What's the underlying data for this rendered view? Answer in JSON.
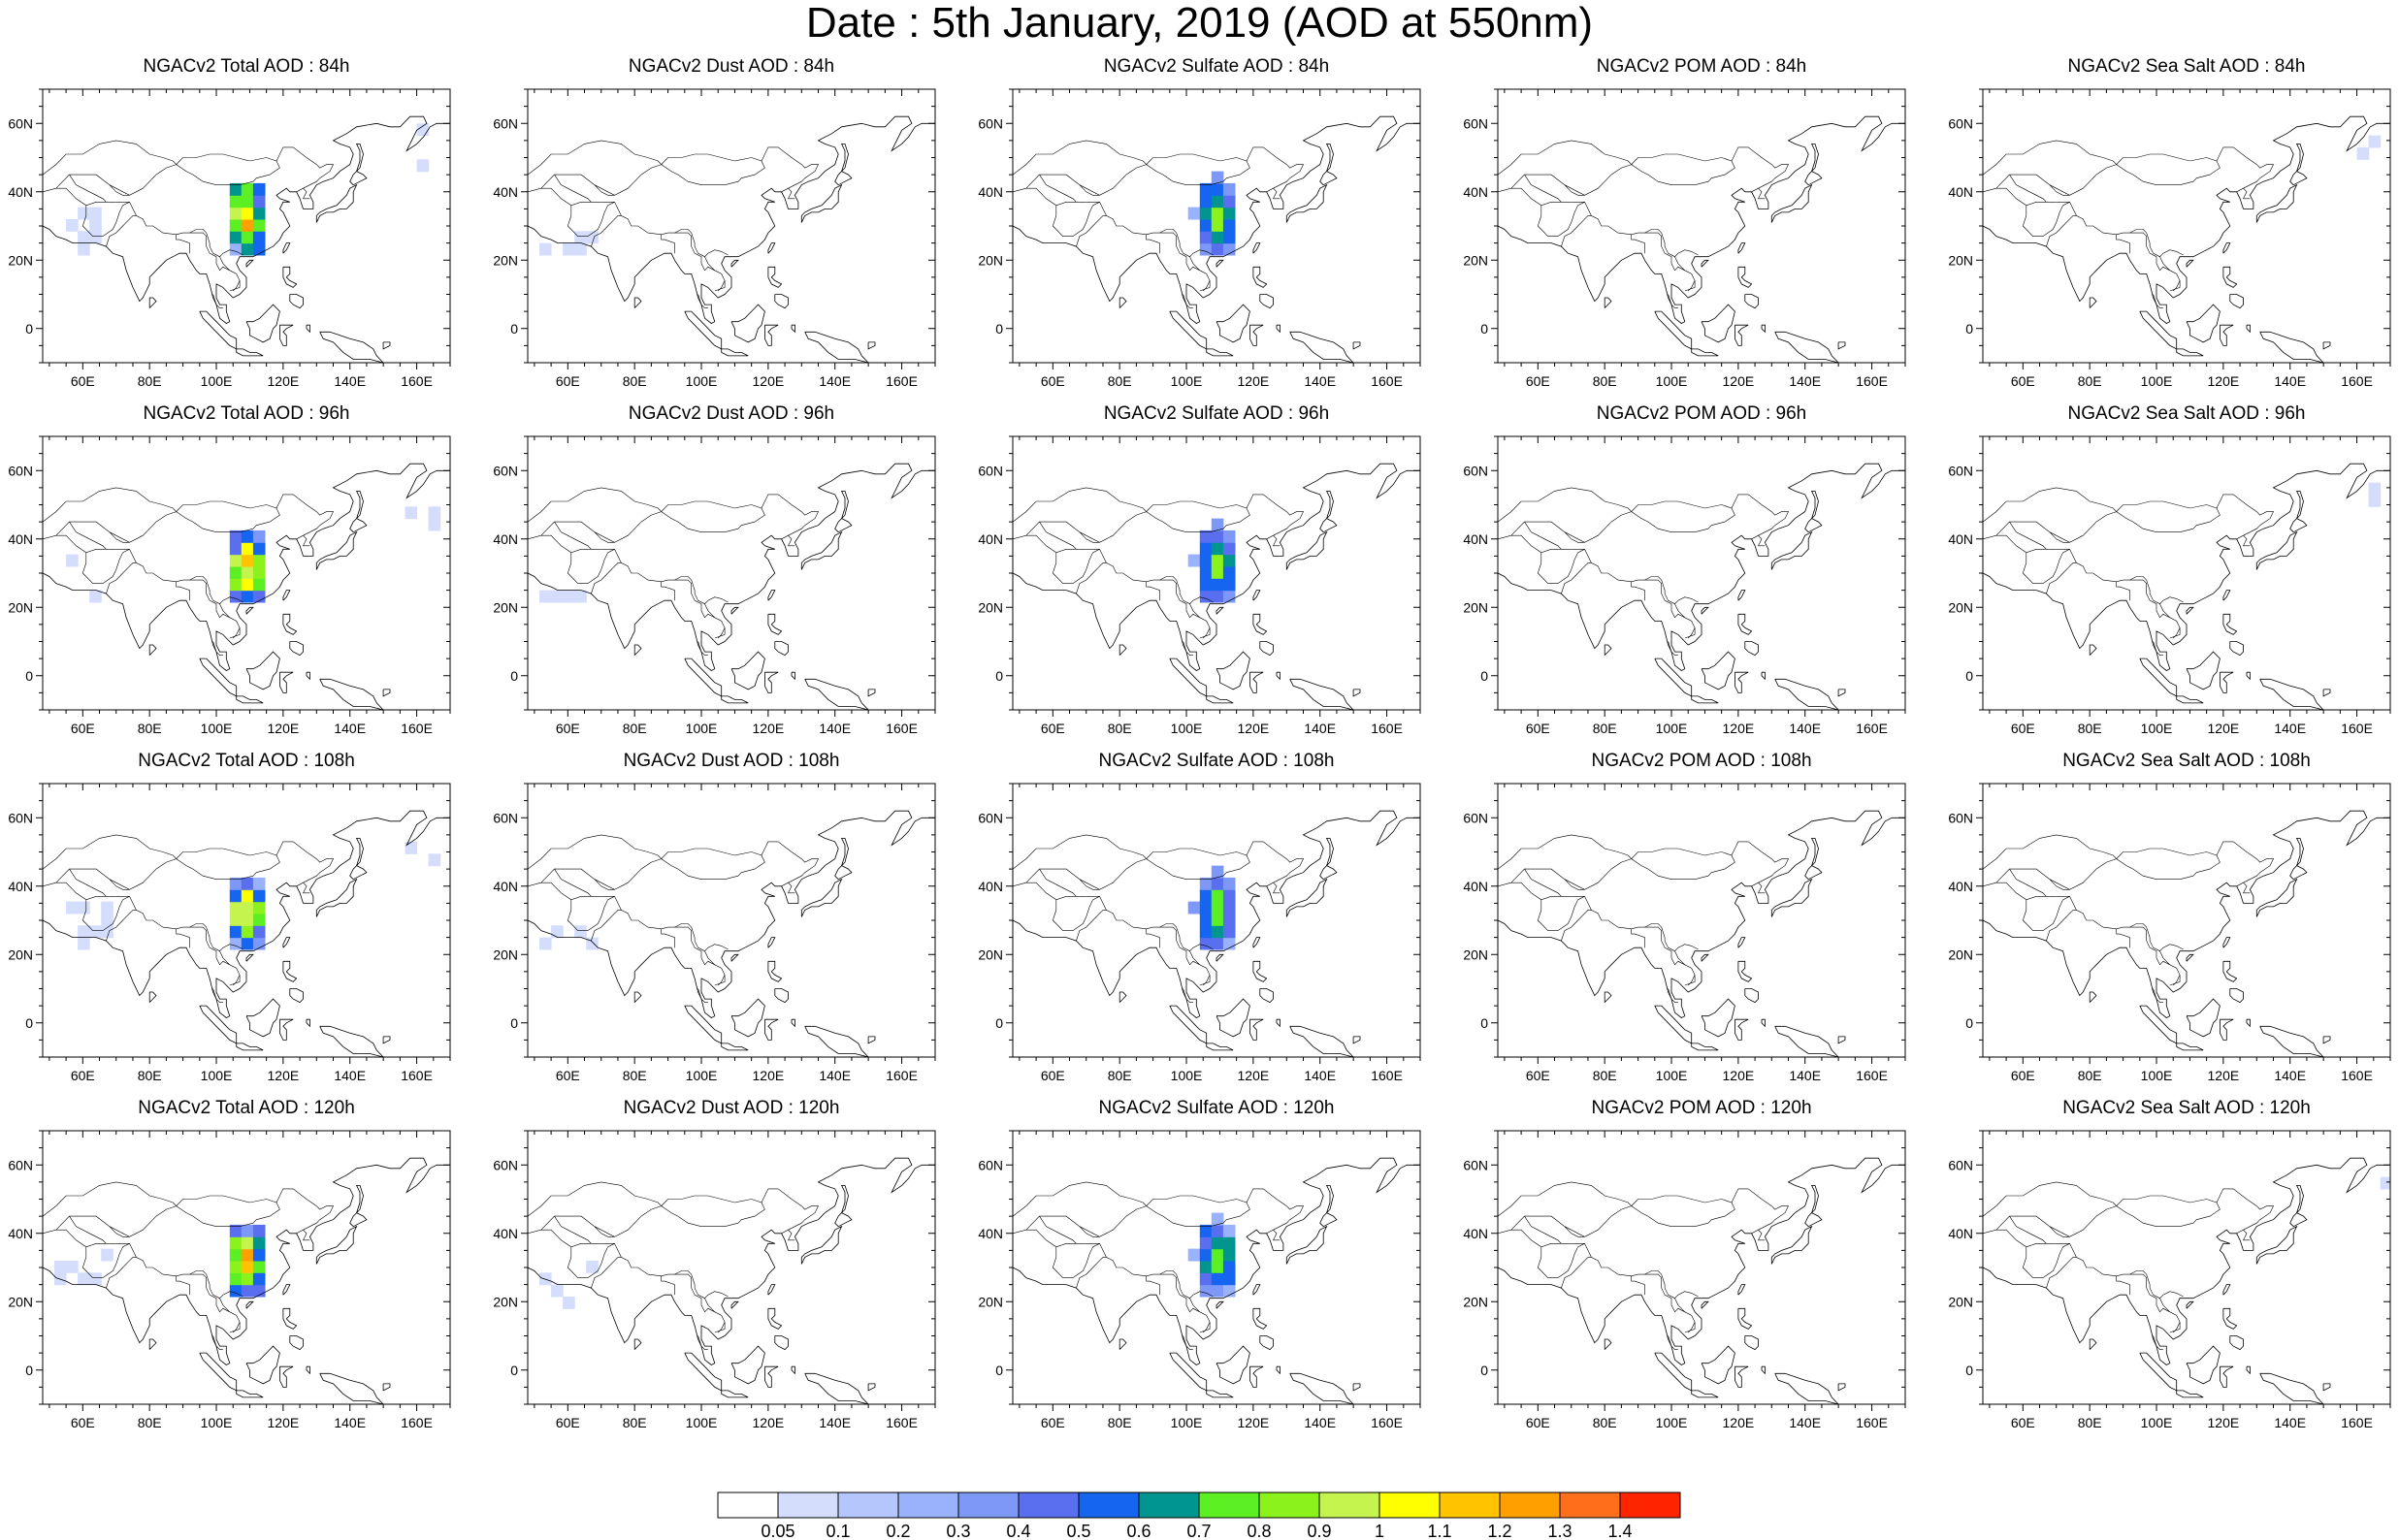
{
  "title": "Date : 5th January, 2019 (AOD at 550nm)",
  "map_extent": {
    "lon": [
      48,
      170
    ],
    "lat": [
      -10,
      70
    ]
  },
  "lon_ticks": [
    60,
    80,
    100,
    120,
    140,
    160
  ],
  "lon_tick_labels": [
    "60E",
    "80E",
    "100E",
    "120E",
    "140E",
    "160E"
  ],
  "lat_ticks": [
    60,
    40,
    20,
    0
  ],
  "lat_tick_labels": [
    "60N",
    "40N",
    "20N",
    "0"
  ],
  "panels": [
    {
      "title": "NGACv2 Total AOD : 84h",
      "species": "total",
      "hour": 84
    },
    {
      "title": "NGACv2 Dust AOD : 84h",
      "species": "dust",
      "hour": 84
    },
    {
      "title": "NGACv2 Sulfate AOD : 84h",
      "species": "sulfate",
      "hour": 84
    },
    {
      "title": "NGACv2 POM AOD : 84h",
      "species": "pom",
      "hour": 84
    },
    {
      "title": "NGACv2 Sea Salt AOD : 84h",
      "species": "seasalt",
      "hour": 84
    },
    {
      "title": "NGACv2 Total AOD : 96h",
      "species": "total",
      "hour": 96
    },
    {
      "title": "NGACv2 Dust AOD : 96h",
      "species": "dust",
      "hour": 96
    },
    {
      "title": "NGACv2 Sulfate AOD : 96h",
      "species": "sulfate",
      "hour": 96
    },
    {
      "title": "NGACv2 POM AOD : 96h",
      "species": "pom",
      "hour": 96
    },
    {
      "title": "NGACv2 Sea Salt AOD : 96h",
      "species": "seasalt",
      "hour": 96
    },
    {
      "title": "NGACv2 Total AOD : 108h",
      "species": "total",
      "hour": 108
    },
    {
      "title": "NGACv2 Dust AOD : 108h",
      "species": "dust",
      "hour": 108
    },
    {
      "title": "NGACv2 Sulfate AOD : 108h",
      "species": "sulfate",
      "hour": 108
    },
    {
      "title": "NGACv2 POM AOD : 108h",
      "species": "pom",
      "hour": 108
    },
    {
      "title": "NGACv2 Sea Salt AOD : 108h",
      "species": "seasalt",
      "hour": 108
    },
    {
      "title": "NGACv2 Total AOD : 120h",
      "species": "total",
      "hour": 120
    },
    {
      "title": "NGACv2 Dust AOD : 120h",
      "species": "dust",
      "hour": 120
    },
    {
      "title": "NGACv2 Sulfate AOD : 120h",
      "species": "sulfate",
      "hour": 120
    },
    {
      "title": "NGACv2 POM AOD : 120h",
      "species": "pom",
      "hour": 120
    },
    {
      "title": "NGACv2 Sea Salt  AOD : 120h",
      "species": "seasalt",
      "hour": 120
    }
  ],
  "colorbar": {
    "colors": [
      "#ffffff",
      "#d4defc",
      "#b4c6fb",
      "#9ab2fb",
      "#7d98f7",
      "#5a6ff0",
      "#1565f0",
      "#00968f",
      "#5cf024",
      "#8cf21b",
      "#c6f44f",
      "#ffff00",
      "#ffc300",
      "#ff9f00",
      "#ff6e1a",
      "#ff2400"
    ],
    "labels": [
      "0.05",
      "0.1",
      "0.2",
      "0.3",
      "0.4",
      "0.5",
      "0.6",
      "0.7",
      "0.8",
      "0.9",
      "1",
      "1.1",
      "1.2",
      "1.3",
      "1.4"
    ]
  }
}
